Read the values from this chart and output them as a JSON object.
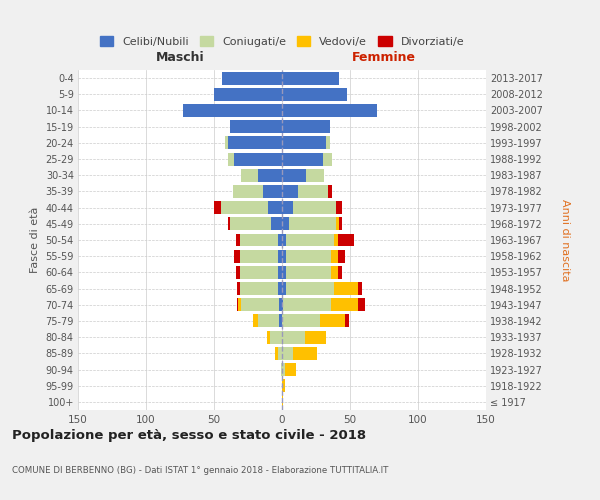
{
  "age_groups": [
    "100+",
    "95-99",
    "90-94",
    "85-89",
    "80-84",
    "75-79",
    "70-74",
    "65-69",
    "60-64",
    "55-59",
    "50-54",
    "45-49",
    "40-44",
    "35-39",
    "30-34",
    "25-29",
    "20-24",
    "15-19",
    "10-14",
    "5-9",
    "0-4"
  ],
  "birth_years": [
    "≤ 1917",
    "1918-1922",
    "1923-1927",
    "1928-1932",
    "1933-1937",
    "1938-1942",
    "1943-1947",
    "1948-1952",
    "1953-1957",
    "1958-1962",
    "1963-1967",
    "1968-1972",
    "1973-1977",
    "1978-1982",
    "1983-1987",
    "1988-1992",
    "1993-1997",
    "1998-2002",
    "2003-2007",
    "2008-2012",
    "2013-2017"
  ],
  "male": {
    "celibi": [
      0,
      0,
      0,
      0,
      0,
      2,
      2,
      3,
      3,
      3,
      3,
      8,
      10,
      14,
      18,
      35,
      40,
      38,
      73,
      50,
      44
    ],
    "coniugati": [
      0,
      0,
      1,
      3,
      9,
      16,
      28,
      28,
      28,
      28,
      28,
      30,
      35,
      22,
      12,
      5,
      2,
      0,
      0,
      0,
      0
    ],
    "vedovi": [
      0,
      0,
      0,
      2,
      2,
      3,
      2,
      0,
      0,
      0,
      0,
      0,
      0,
      0,
      0,
      0,
      0,
      0,
      0,
      0,
      0
    ],
    "divorziati": [
      0,
      0,
      0,
      0,
      0,
      0,
      1,
      2,
      3,
      4,
      3,
      2,
      5,
      0,
      0,
      0,
      0,
      0,
      0,
      0,
      0
    ]
  },
  "female": {
    "nubili": [
      0,
      0,
      0,
      0,
      0,
      0,
      1,
      3,
      3,
      3,
      3,
      5,
      8,
      12,
      18,
      30,
      32,
      35,
      70,
      48,
      42
    ],
    "coniugate": [
      0,
      0,
      2,
      8,
      17,
      28,
      35,
      35,
      33,
      33,
      35,
      35,
      32,
      22,
      13,
      7,
      3,
      0,
      0,
      0,
      0
    ],
    "vedove": [
      1,
      2,
      8,
      18,
      15,
      18,
      20,
      18,
      5,
      5,
      3,
      2,
      0,
      0,
      0,
      0,
      0,
      0,
      0,
      0,
      0
    ],
    "divorziate": [
      0,
      0,
      0,
      0,
      0,
      3,
      5,
      3,
      3,
      5,
      12,
      2,
      4,
      3,
      0,
      0,
      0,
      0,
      0,
      0,
      0
    ]
  },
  "colors": {
    "celibi_nubili": "#4472c4",
    "coniugati": "#c5d9a0",
    "vedovi": "#ffc000",
    "divorziati": "#cc0000"
  },
  "xlim": 150,
  "title": "Popolazione per età, sesso e stato civile - 2018",
  "subtitle": "COMUNE DI BERBENNO (BG) - Dati ISTAT 1° gennaio 2018 - Elaborazione TUTTITALIA.IT",
  "xlabel_left": "Maschi",
  "xlabel_right": "Femmine",
  "ylabel_left": "Fasce di età",
  "ylabel_right": "Anni di nascita",
  "legend_labels": [
    "Celibi/Nubili",
    "Coniugati/e",
    "Vedovi/e",
    "Divorziati/e"
  ],
  "bg_color": "#f0f0f0",
  "plot_bg": "#ffffff"
}
